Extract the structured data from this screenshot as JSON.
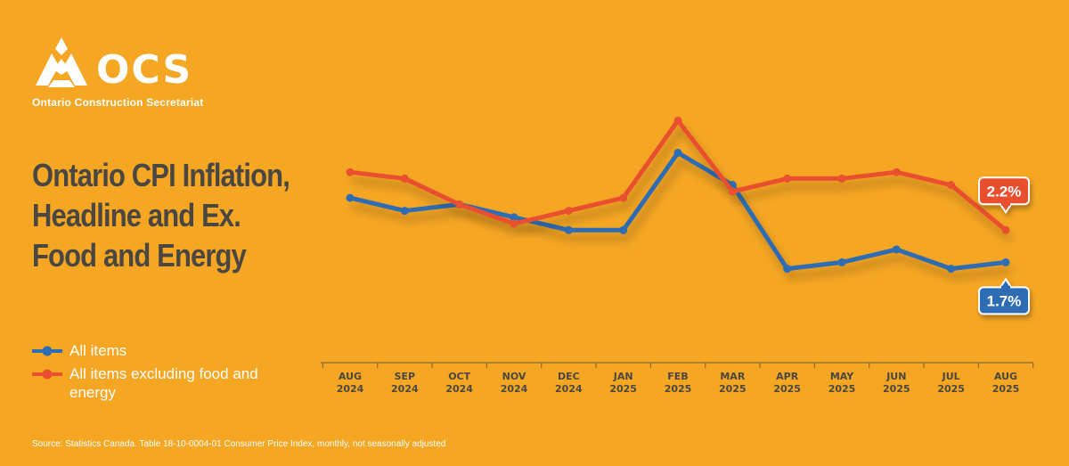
{
  "brand": {
    "logo_text": "OCS",
    "org_name": "Ontario Construction Secretariat",
    "logo_icon": "ocs-flame-logo-icon",
    "background_color": "#F5A623",
    "text_dark": "#4A4743"
  },
  "footer": {
    "source": "Source: Statistics Canada. Table 18-10-0004-01  Consumer Price Index, monthly, not seasonally adjusted"
  },
  "chart_data": {
    "type": "line",
    "title": "Ontario CPI Inflation, Headline and Ex. Food and Energy",
    "xlabel": "",
    "ylabel": "",
    "categories": [
      [
        "AUG",
        "2024"
      ],
      [
        "SEP",
        "2024"
      ],
      [
        "OCT",
        "2024"
      ],
      [
        "NOV",
        "2024"
      ],
      [
        "DEC",
        "2024"
      ],
      [
        "JAN",
        "2025"
      ],
      [
        "FEB",
        "2025"
      ],
      [
        "MAR",
        "2025"
      ],
      [
        "APR",
        "2025"
      ],
      [
        "MAY",
        "2025"
      ],
      [
        "JUN",
        "2025"
      ],
      [
        "JUL",
        "2025"
      ],
      [
        "AUG",
        "2025"
      ]
    ],
    "series": [
      {
        "name": "All items",
        "color": "#2E6DB4",
        "values": [
          2.7,
          2.5,
          2.6,
          2.4,
          2.2,
          2.2,
          3.4,
          2.9,
          1.6,
          1.7,
          1.9,
          1.6,
          1.7
        ],
        "end_label": "1.7%"
      },
      {
        "name": "All items excluding food and energy",
        "color": "#E9502F",
        "values": [
          3.1,
          3.0,
          2.6,
          2.3,
          2.5,
          2.7,
          3.9,
          2.8,
          3.0,
          3.0,
          3.1,
          2.9,
          2.2
        ],
        "end_label": "2.2%"
      }
    ],
    "ylim": [
      1.0,
      4.5
    ],
    "grid": false,
    "legend_position": "bottom-left"
  }
}
